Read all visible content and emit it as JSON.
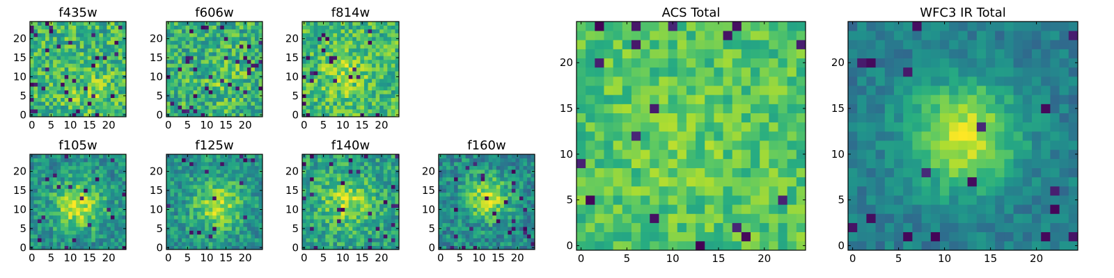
{
  "figure": {
    "description_free": true
  },
  "chart_data": [
    {
      "type": "heatmap",
      "title": "f435w",
      "colormap": "viridis",
      "grid_size": [
        25,
        25
      ],
      "xlim": [
        -0.5,
        24.5
      ],
      "ylim": [
        -0.5,
        24.5
      ],
      "xticks": [
        0,
        5,
        10,
        15,
        20
      ],
      "yticks": [
        0,
        5,
        10,
        15,
        20
      ],
      "grid": false,
      "seed": 11,
      "base_level": 0.66,
      "noise": 0.22,
      "peak": {
        "center": [
          15,
          6
        ],
        "amplitude": 0.12,
        "sigma": 4
      },
      "outlier_fraction": 0.05
    },
    {
      "type": "heatmap",
      "title": "f606w",
      "colormap": "viridis",
      "grid_size": [
        25,
        25
      ],
      "xlim": [
        -0.5,
        24.5
      ],
      "ylim": [
        -0.5,
        24.5
      ],
      "xticks": [
        0,
        5,
        10,
        15,
        20
      ],
      "yticks": [
        0,
        5,
        10,
        15,
        20
      ],
      "grid": false,
      "seed": 23,
      "base_level": 0.64,
      "noise": 0.22,
      "peak": {
        "center": [
          15,
          9
        ],
        "amplitude": 0.1,
        "sigma": 4
      },
      "outlier_fraction": 0.05
    },
    {
      "type": "heatmap",
      "title": "f814w",
      "colormap": "viridis",
      "grid_size": [
        25,
        25
      ],
      "xlim": [
        -0.5,
        24.5
      ],
      "ylim": [
        -0.5,
        24.5
      ],
      "xticks": [
        0,
        5,
        10,
        15,
        20
      ],
      "yticks": [
        0,
        5,
        10,
        15,
        20
      ],
      "grid": false,
      "seed": 37,
      "base_level": 0.68,
      "noise": 0.2,
      "peak": {
        "center": [
          10,
          11
        ],
        "amplitude": 0.18,
        "sigma": 4
      },
      "outlier_fraction": 0.04
    },
    {
      "type": "heatmap",
      "title": "f105w",
      "colormap": "viridis",
      "grid_size": [
        25,
        25
      ],
      "xlim": [
        -0.5,
        24.5
      ],
      "ylim": [
        -0.5,
        24.5
      ],
      "xticks": [
        0,
        5,
        10,
        15,
        20
      ],
      "yticks": [
        0,
        5,
        10,
        15,
        20
      ],
      "grid": false,
      "seed": 41,
      "base_level": 0.5,
      "noise": 0.17,
      "peak": {
        "center": [
          12,
          11
        ],
        "amplitude": 0.42,
        "sigma": 4.5
      },
      "outlier_fraction": 0.04
    },
    {
      "type": "heatmap",
      "title": "f125w",
      "colormap": "viridis",
      "grid_size": [
        25,
        25
      ],
      "xlim": [
        -0.5,
        24.5
      ],
      "ylim": [
        -0.5,
        24.5
      ],
      "xticks": [
        0,
        5,
        10,
        15,
        20
      ],
      "yticks": [
        0,
        5,
        10,
        15,
        20
      ],
      "grid": false,
      "seed": 53,
      "base_level": 0.52,
      "noise": 0.17,
      "peak": {
        "center": [
          13,
          11
        ],
        "amplitude": 0.36,
        "sigma": 4.5
      },
      "outlier_fraction": 0.03
    },
    {
      "type": "heatmap",
      "title": "f140w",
      "colormap": "viridis",
      "grid_size": [
        25,
        25
      ],
      "xlim": [
        -0.5,
        24.5
      ],
      "ylim": [
        -0.5,
        24.5
      ],
      "xticks": [
        0,
        5,
        10,
        15,
        20
      ],
      "yticks": [
        0,
        5,
        10,
        15,
        20
      ],
      "grid": false,
      "seed": 67,
      "base_level": 0.58,
      "noise": 0.18,
      "peak": {
        "center": [
          11,
          12
        ],
        "amplitude": 0.3,
        "sigma": 4.5
      },
      "outlier_fraction": 0.04
    },
    {
      "type": "heatmap",
      "title": "f160w",
      "colormap": "viridis",
      "grid_size": [
        25,
        25
      ],
      "xlim": [
        -0.5,
        24.5
      ],
      "ylim": [
        -0.5,
        24.5
      ],
      "xticks": [
        0,
        5,
        10,
        15,
        20
      ],
      "yticks": [
        0,
        5,
        10,
        15,
        20
      ],
      "grid": false,
      "seed": 79,
      "base_level": 0.48,
      "noise": 0.18,
      "peak": {
        "center": [
          12,
          13
        ],
        "amplitude": 0.42,
        "sigma": 4
      },
      "outlier_fraction": 0.05
    },
    {
      "type": "heatmap",
      "title": "ACS Total",
      "colormap": "viridis",
      "grid_size": [
        25,
        25
      ],
      "xlim": [
        -0.5,
        24.5
      ],
      "ylim": [
        -0.5,
        24.5
      ],
      "xticks": [
        0,
        5,
        10,
        15,
        20
      ],
      "yticks": [
        0,
        5,
        10,
        15,
        20
      ],
      "grid": false,
      "seed": 97,
      "base_level": 0.72,
      "noise": 0.14,
      "peak": {
        "center": [
          11,
          11
        ],
        "amplitude": 0.06,
        "sigma": 5
      },
      "outlier_fraction": 0.035
    },
    {
      "type": "heatmap",
      "title": "WFC3 IR Total",
      "colormap": "viridis",
      "grid_size": [
        25,
        25
      ],
      "xlim": [
        -0.5,
        24.5
      ],
      "ylim": [
        -0.5,
        24.5
      ],
      "xticks": [
        0,
        5,
        10,
        15,
        20
      ],
      "yticks": [
        0,
        5,
        10,
        15,
        20
      ],
      "grid": false,
      "seed": 113,
      "base_level": 0.42,
      "noise": 0.1,
      "peak": {
        "center": [
          12,
          12
        ],
        "amplitude": 0.52,
        "sigma": 4.2
      },
      "outlier_fraction": 0.025
    }
  ]
}
